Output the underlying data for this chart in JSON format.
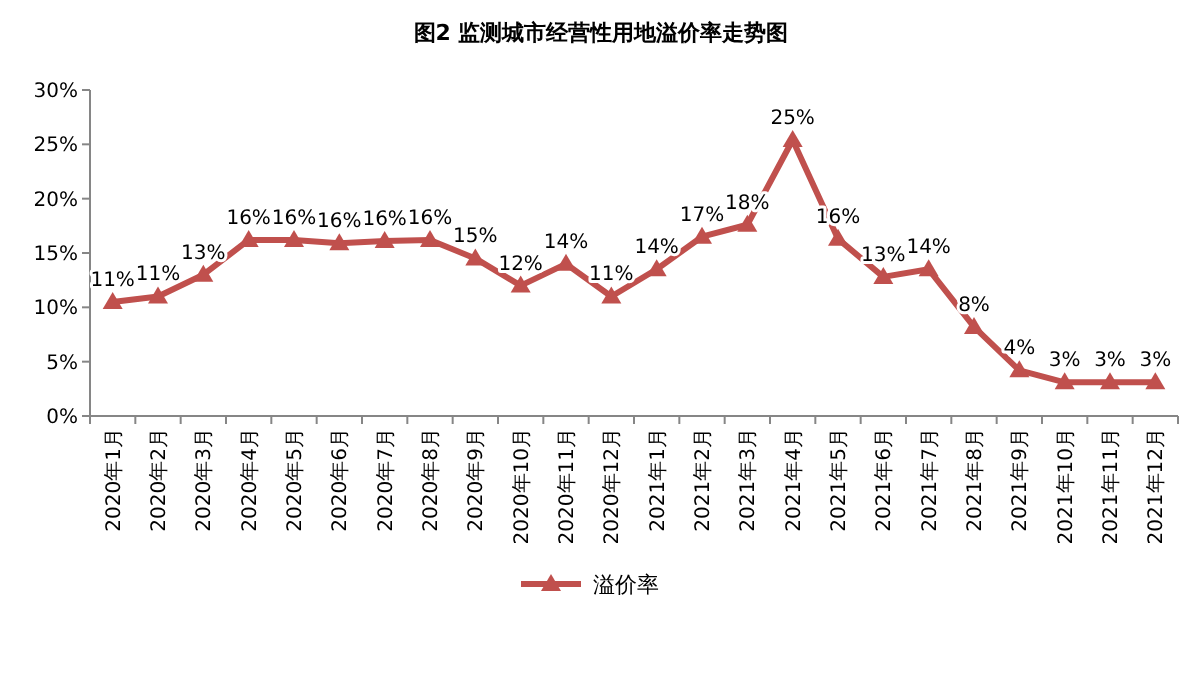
{
  "chart_data": {
    "type": "line",
    "title": "图2  监测城市经营性用地溢价率走势图",
    "categories": [
      "2020年1月",
      "2020年2月",
      "2020年3月",
      "2020年4月",
      "2020年5月",
      "2020年6月",
      "2020年7月",
      "2020年8月",
      "2020年9月",
      "2020年10月",
      "2020年11月",
      "2020年12月",
      "2021年1月",
      "2021年2月",
      "2021年3月",
      "2021年4月",
      "2021年5月",
      "2021年6月",
      "2021年7月",
      "2021年8月",
      "2021年9月",
      "2021年10月",
      "2021年11月",
      "2021年12月"
    ],
    "series": [
      {
        "name": "溢价率",
        "color": "#c0504d",
        "values": [
          10.5,
          11,
          13,
          16.2,
          16.2,
          15.9,
          16.1,
          16.2,
          14.5,
          12,
          14,
          11,
          13.5,
          16.5,
          17.6,
          25.4,
          16.3,
          12.8,
          13.5,
          8.2,
          4.2,
          3.1,
          3.1,
          3.1
        ],
        "value_labels": [
          "11%",
          "11%",
          "13%",
          "16%",
          "16%",
          "16%",
          "16%",
          "16%",
          "15%",
          "12%",
          "14%",
          "11%",
          "14%",
          "17%",
          "18%",
          "25%",
          "16%",
          "13%",
          "14%",
          "8%",
          "4%",
          "3%",
          "3%",
          "3%"
        ]
      }
    ],
    "ylim": [
      0,
      30
    ],
    "yticks": [
      {
        "value": 0,
        "label": "0%"
      },
      {
        "value": 5,
        "label": "5%"
      },
      {
        "value": 10,
        "label": "10%"
      },
      {
        "value": 15,
        "label": "15%"
      },
      {
        "value": 20,
        "label": "20%"
      },
      {
        "value": 25,
        "label": "25%"
      },
      {
        "value": 30,
        "label": "30%"
      }
    ],
    "grid": false,
    "legend": "bottom",
    "marker": "triangle",
    "line_style": "solid"
  }
}
